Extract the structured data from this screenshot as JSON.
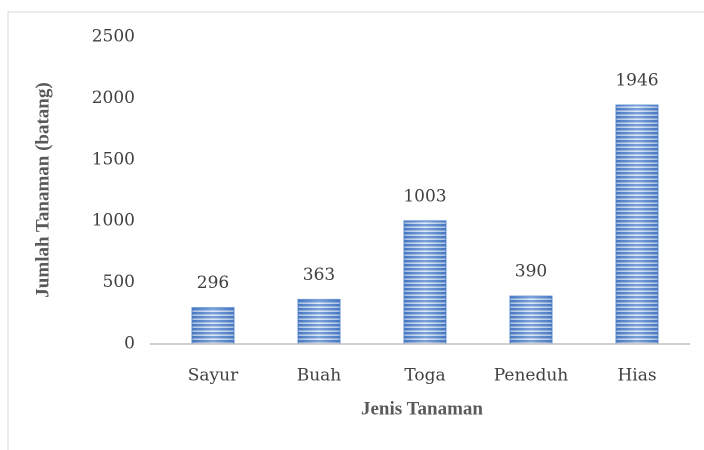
{
  "chart_data": {
    "type": "bar",
    "categories": [
      "Sayur",
      "Buah",
      "Toga",
      "Peneduh",
      "Hias"
    ],
    "values": [
      296,
      363,
      1003,
      390,
      1946
    ],
    "color": "#5b8fd6",
    "ylim": [
      0,
      2500
    ],
    "yticks": [
      0,
      500,
      1000,
      1500,
      2000,
      2500
    ],
    "grid": false,
    "xlabel": "Jenis Tanaman",
    "ylabel": "Jumlah Tanaman (batang)"
  }
}
